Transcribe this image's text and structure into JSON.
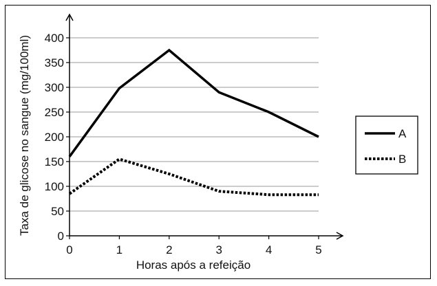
{
  "chart_data": {
    "type": "line",
    "title": "",
    "xlabel": "Horas após a refeição",
    "ylabel": "Taxa de glicose no sangue (mg/100ml)",
    "x": [
      0,
      1,
      2,
      3,
      4,
      5
    ],
    "x_ticks": [
      "0",
      "1",
      "2",
      "3",
      "4",
      "5"
    ],
    "y_ticks": [
      "0",
      "50",
      "100",
      "150",
      "200",
      "250",
      "300",
      "350",
      "400"
    ],
    "xlim": [
      0,
      5
    ],
    "ylim": [
      0,
      400
    ],
    "grid": "horizontal",
    "legend_position": "right",
    "series": [
      {
        "name": "A",
        "style": "solid",
        "color": "#000000",
        "values": [
          160,
          298,
          375,
          290,
          250,
          200
        ]
      },
      {
        "name": "B",
        "style": "dotted",
        "color": "#000000",
        "values": [
          85,
          155,
          125,
          90,
          83,
          83
        ]
      }
    ]
  }
}
